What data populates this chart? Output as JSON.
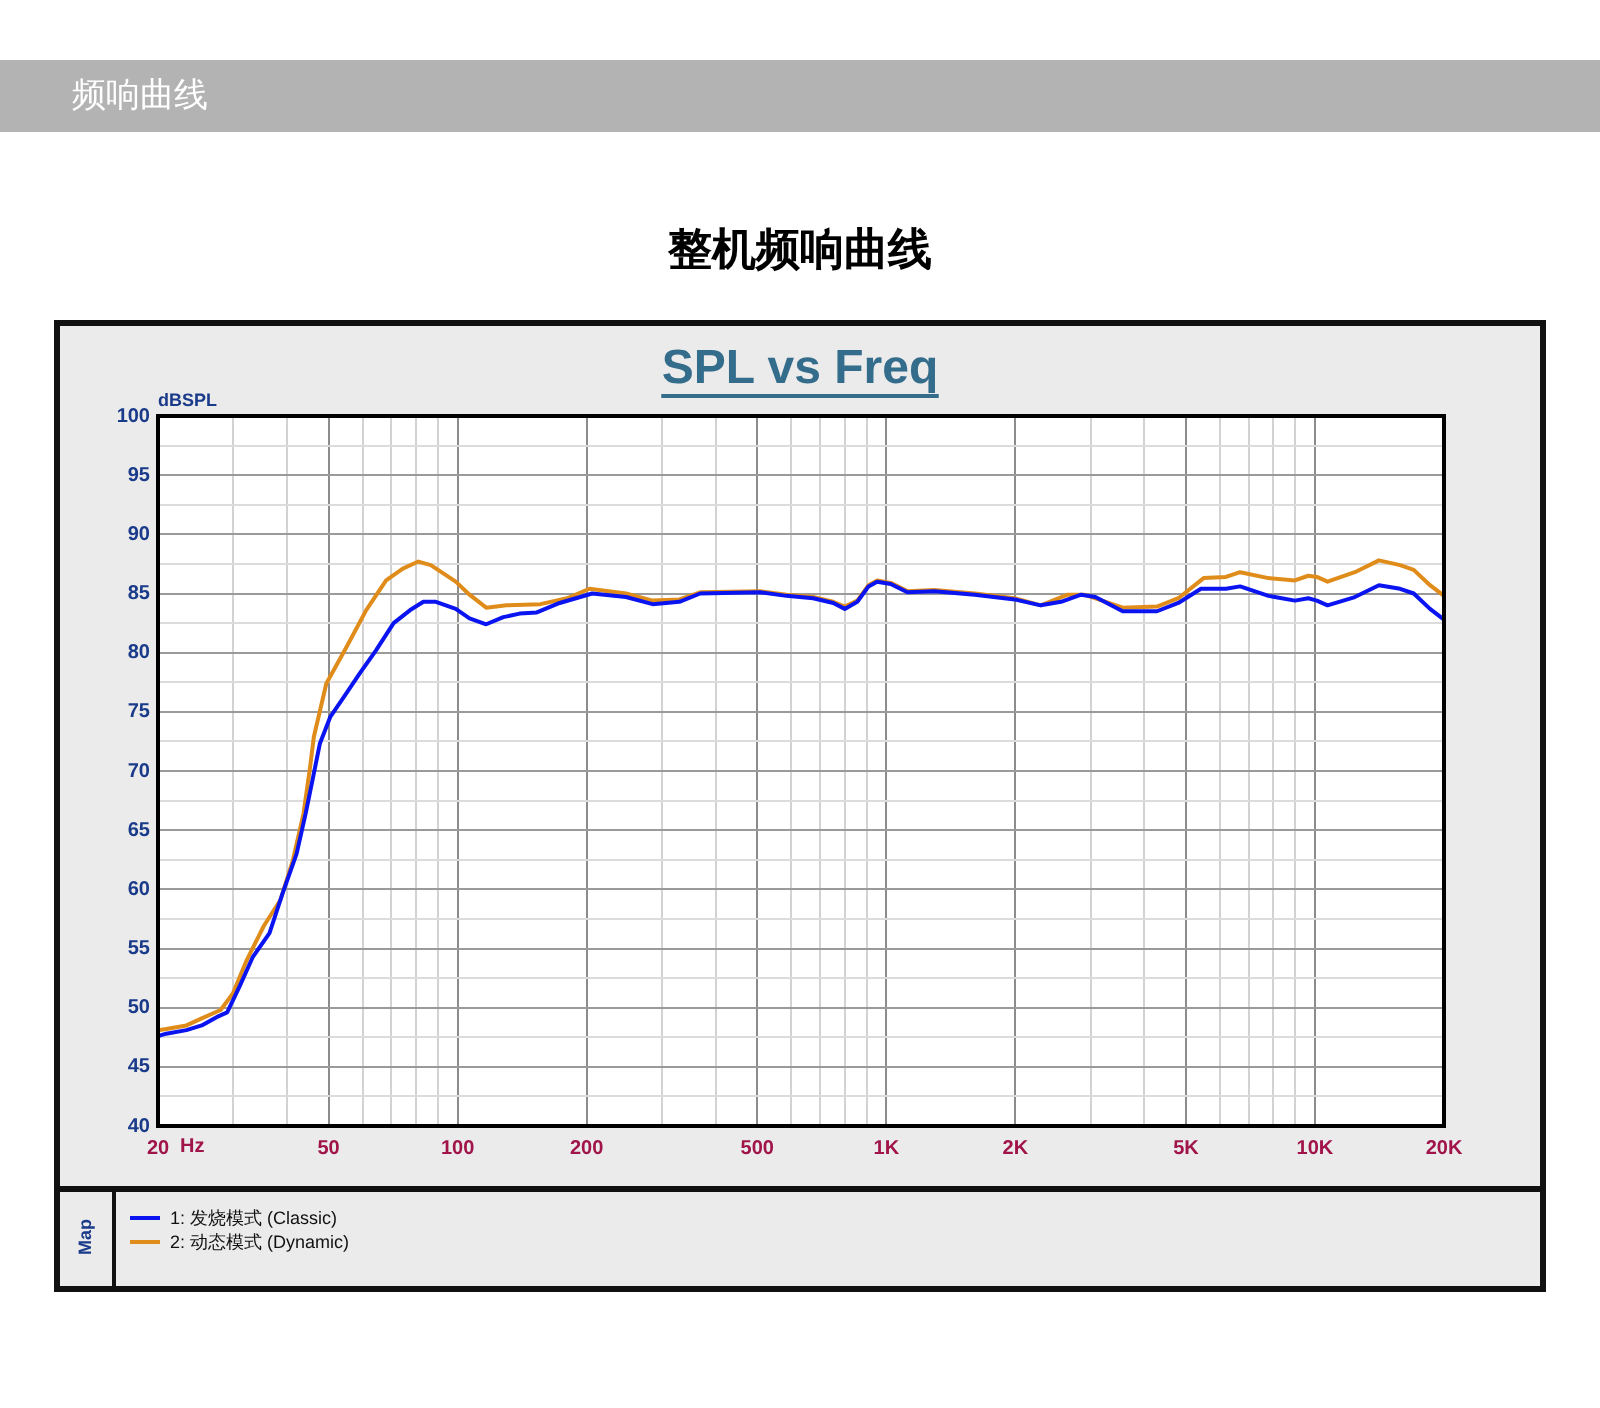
{
  "chart_data": {
    "type": "line",
    "title": "整机频响曲线",
    "subtitle": "SPL vs Freq",
    "annotations": [
      "频响曲线"
    ],
    "xlabel": "Hz",
    "ylabel": "dBSPL",
    "legend_title": "Map",
    "legend": "bottom",
    "grid": true,
    "log": "x",
    "marker": "none",
    "line_style": "solid",
    "xlim": [
      20,
      20000
    ],
    "ylim": [
      40,
      100
    ],
    "xticks": [
      20,
      {
        "value": 30,
        "label": null
      },
      {
        "value": 40,
        "label": null
      },
      50,
      {
        "value": 60,
        "label": null
      },
      {
        "value": 70,
        "label": null
      },
      {
        "value": 80,
        "label": null
      },
      {
        "value": 90,
        "label": null
      },
      100,
      200,
      {
        "value": 300,
        "label": null
      },
      {
        "value": 400,
        "label": null
      },
      500,
      {
        "value": 600,
        "label": null
      },
      {
        "value": 700,
        "label": null
      },
      {
        "value": 800,
        "label": null
      },
      {
        "value": 900,
        "label": null
      },
      {
        "value": 1000,
        "label": "1K"
      },
      {
        "value": 2000,
        "label": "2K"
      },
      {
        "value": 3000,
        "label": null
      },
      {
        "value": 4000,
        "label": null
      },
      {
        "value": 5000,
        "label": "5K"
      },
      {
        "value": 6000,
        "label": null
      },
      {
        "value": 7000,
        "label": null
      },
      {
        "value": 8000,
        "label": null
      },
      {
        "value": 9000,
        "label": null
      },
      {
        "value": 10000,
        "label": "10K"
      },
      {
        "value": 20000,
        "label": "20K"
      }
    ],
    "yticks": [
      40,
      {
        "value": 42.5,
        "label": null
      },
      45,
      {
        "value": 47.5,
        "label": null
      },
      50,
      {
        "value": 52.5,
        "label": null
      },
      55,
      {
        "value": 57.5,
        "label": null
      },
      60,
      {
        "value": 62.5,
        "label": null
      },
      65,
      {
        "value": 67.5,
        "label": null
      },
      70,
      {
        "value": 72.5,
        "label": null
      },
      75,
      {
        "value": 77.5,
        "label": null
      },
      80,
      {
        "value": 82.5,
        "label": null
      },
      85,
      {
        "value": 87.5,
        "label": null
      },
      90,
      {
        "value": 92.5,
        "label": null
      },
      95,
      {
        "value": 97.5,
        "label": null
      },
      100
    ],
    "series": [
      {
        "name": "1: 发烧模式 (Classic)",
        "color": "#0a14f0",
        "x": [
          20,
          20.9,
          23.3,
          25.3,
          27.4,
          29,
          31,
          33.3,
          36.4,
          39,
          42.1,
          44.2,
          46.2,
          47.7,
          50.5,
          54.4,
          59,
          64.5,
          70.9,
          77.5,
          83.2,
          89,
          99,
          106.6,
          116.6,
          127.8,
          139.5,
          153,
          173,
          206,
          247,
          285,
          329,
          368,
          507,
          585,
          675,
          752,
          800,
          856,
          909,
          952,
          1024,
          1120,
          1295,
          1608,
          1994,
          2293,
          2556,
          2848,
          3075,
          3560,
          4280,
          4800,
          5420,
          6200,
          6690,
          7790,
          8980,
          9650,
          10100,
          10700,
          12390,
          14100,
          15800,
          17000,
          18550,
          20000
        ],
        "values": [
          47.6,
          47.8,
          48.1,
          48.5,
          49.2,
          49.6,
          51.8,
          54.3,
          56.3,
          59.6,
          63.0,
          66.4,
          69.8,
          72.3,
          74.6,
          76.3,
          78.2,
          80.2,
          82.5,
          83.6,
          84.3,
          84.3,
          83.7,
          82.9,
          82.4,
          83.0,
          83.3,
          83.4,
          84.2,
          85.0,
          84.7,
          84.1,
          84.3,
          85.0,
          85.1,
          84.8,
          84.6,
          84.2,
          83.7,
          84.3,
          85.6,
          86.0,
          85.8,
          85.1,
          85.2,
          84.9,
          84.5,
          84.0,
          84.3,
          84.9,
          84.7,
          83.5,
          83.5,
          84.2,
          85.4,
          85.4,
          85.6,
          84.8,
          84.4,
          84.6,
          84.4,
          84.0,
          84.7,
          85.7,
          85.4,
          85.0,
          83.7,
          82.8
        ]
      },
      {
        "name": "2: 动态模式 (Dynamic)",
        "color": "#e08c1a",
        "x": [
          20,
          20.9,
          23.3,
          25.3,
          28,
          29.9,
          32.2,
          35.3,
          38.6,
          41.3,
          43.7,
          45.3,
          46.2,
          49.4,
          55.1,
          61.2,
          68.1,
          74.5,
          81,
          86.6,
          99,
          106.6,
          116.6,
          130,
          156,
          180,
          203,
          247,
          285,
          329,
          368,
          507,
          585,
          675,
          752,
          800,
          856,
          909,
          952,
          1024,
          1120,
          1295,
          1608,
          1994,
          2293,
          2650,
          2900,
          3560,
          4280,
          4800,
          5500,
          6200,
          6690,
          7790,
          8980,
          9650,
          10100,
          10700,
          12390,
          14100,
          15800,
          17000,
          18550,
          20000
        ],
        "values": [
          48.1,
          48.2,
          48.5,
          49.1,
          49.8,
          51.2,
          54.0,
          56.9,
          59.1,
          62.5,
          66.4,
          70.4,
          72.9,
          77.4,
          80.5,
          83.6,
          86.1,
          87.1,
          87.7,
          87.4,
          86.0,
          84.9,
          83.8,
          84.0,
          84.1,
          84.6,
          85.4,
          85.0,
          84.4,
          84.5,
          85.1,
          85.2,
          84.9,
          84.7,
          84.3,
          83.9,
          84.4,
          85.7,
          86.1,
          85.9,
          85.2,
          85.3,
          85.0,
          84.6,
          84.0,
          84.9,
          84.9,
          83.8,
          83.9,
          84.6,
          86.3,
          86.4,
          86.8,
          86.3,
          86.1,
          86.5,
          86.4,
          86.0,
          86.8,
          87.8,
          87.4,
          87.0,
          85.7,
          84.8
        ]
      }
    ]
  }
}
